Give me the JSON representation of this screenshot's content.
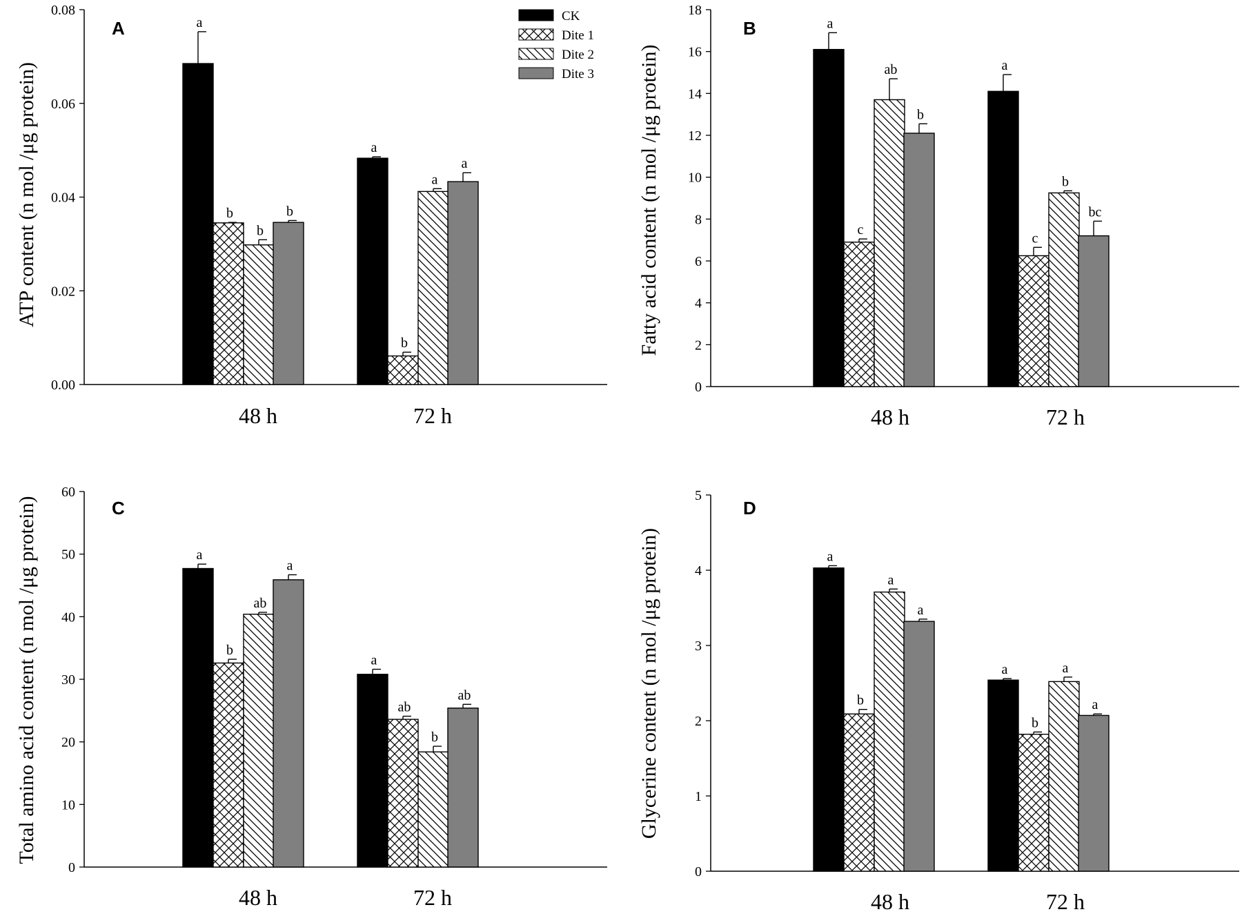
{
  "legend": [
    {
      "name": "CK",
      "style": "solid-black"
    },
    {
      "name": "Dite 1",
      "style": "crosshatch"
    },
    {
      "name": "Dite 2",
      "style": "diagonal"
    },
    {
      "name": "Dite 3",
      "style": "solid-gray"
    }
  ],
  "colors": {
    "ck": "#000000",
    "dite3": "#808080",
    "axis": "#000000",
    "background": "#ffffff"
  },
  "chart_data": [
    {
      "panel": "A",
      "type": "bar",
      "ylabel": "ATP  content  (n mol /μg protein)",
      "categories": [
        "48 h",
        "72 h"
      ],
      "ylim": [
        0,
        0.08
      ],
      "yticks": [
        "0.00",
        "0.02",
        "0.04",
        "0.06",
        "0.08"
      ],
      "legend_position": "top-right",
      "series": [
        {
          "name": "CK",
          "values": [
            0.0685,
            0.0483
          ],
          "errors": [
            0.0068,
            0.0003
          ],
          "letters": [
            "a",
            "a"
          ]
        },
        {
          "name": "Dite 1",
          "values": [
            0.0345,
            0.0061
          ],
          "errors": [
            0.0001,
            0.0008
          ],
          "letters": [
            "b",
            "b"
          ]
        },
        {
          "name": "Dite 2",
          "values": [
            0.0298,
            0.0412
          ],
          "errors": [
            0.0011,
            0.0006
          ],
          "letters": [
            "b",
            "a"
          ]
        },
        {
          "name": "Dite 3",
          "values": [
            0.0346,
            0.0433
          ],
          "errors": [
            0.0004,
            0.0019
          ],
          "letters": [
            "b",
            "a"
          ]
        }
      ]
    },
    {
      "panel": "B",
      "type": "bar",
      "ylabel": "Fatty acid content (n mol /μg protein)",
      "categories": [
        "48 h",
        "72 h"
      ],
      "ylim": [
        0,
        18
      ],
      "yticks": [
        "0",
        "2",
        "4",
        "6",
        "8",
        "10",
        "12",
        "14",
        "16",
        "18"
      ],
      "series": [
        {
          "name": "CK",
          "values": [
            16.1,
            14.1
          ],
          "errors": [
            0.8,
            0.8
          ],
          "letters": [
            "a",
            "a"
          ]
        },
        {
          "name": "Dite 1",
          "values": [
            6.9,
            6.25
          ],
          "errors": [
            0.15,
            0.4
          ],
          "letters": [
            "c",
            "c"
          ]
        },
        {
          "name": "Dite 2",
          "values": [
            13.7,
            9.25
          ],
          "errors": [
            1.0,
            0.1
          ],
          "letters": [
            "ab",
            "b"
          ]
        },
        {
          "name": "Dite 3",
          "values": [
            12.1,
            7.2
          ],
          "errors": [
            0.45,
            0.7
          ],
          "letters": [
            "b",
            "bc"
          ]
        }
      ]
    },
    {
      "panel": "C",
      "type": "bar",
      "ylabel": "Total amino acid content (n mol /μg protein)",
      "categories": [
        "48 h",
        "72 h"
      ],
      "ylim": [
        0,
        60
      ],
      "yticks": [
        "0",
        "10",
        "20",
        "30",
        "40",
        "50",
        "60"
      ],
      "series": [
        {
          "name": "CK",
          "values": [
            47.7,
            30.8
          ],
          "errors": [
            0.7,
            0.8
          ],
          "letters": [
            "a",
            "a"
          ]
        },
        {
          "name": "Dite 1",
          "values": [
            32.6,
            23.6
          ],
          "errors": [
            0.6,
            0.5
          ],
          "letters": [
            "b",
            "ab"
          ]
        },
        {
          "name": "Dite 2",
          "values": [
            40.4,
            18.4
          ],
          "errors": [
            0.3,
            0.9
          ],
          "letters": [
            "ab",
            "b"
          ]
        },
        {
          "name": "Dite 3",
          "values": [
            45.9,
            25.4
          ],
          "errors": [
            0.8,
            0.6
          ],
          "letters": [
            "a",
            "ab"
          ]
        }
      ]
    },
    {
      "panel": "D",
      "type": "bar",
      "ylabel": "Glycerine content (n mol /μg protein)",
      "categories": [
        "48 h",
        "72 h"
      ],
      "ylim": [
        0,
        5
      ],
      "yticks": [
        "0",
        "1",
        "2",
        "3",
        "4",
        "5"
      ],
      "series": [
        {
          "name": "CK",
          "values": [
            4.03,
            2.54
          ],
          "errors": [
            0.03,
            0.02
          ],
          "letters": [
            "a",
            "a"
          ]
        },
        {
          "name": "Dite 1",
          "values": [
            2.09,
            1.82
          ],
          "errors": [
            0.06,
            0.03
          ],
          "letters": [
            "b",
            "b"
          ]
        },
        {
          "name": "Dite 2",
          "values": [
            3.71,
            2.52
          ],
          "errors": [
            0.04,
            0.06
          ],
          "letters": [
            "a",
            "a"
          ]
        },
        {
          "name": "Dite 3",
          "values": [
            3.32,
            2.07
          ],
          "errors": [
            0.03,
            0.02
          ],
          "letters": [
            "a",
            "a"
          ]
        }
      ]
    }
  ]
}
